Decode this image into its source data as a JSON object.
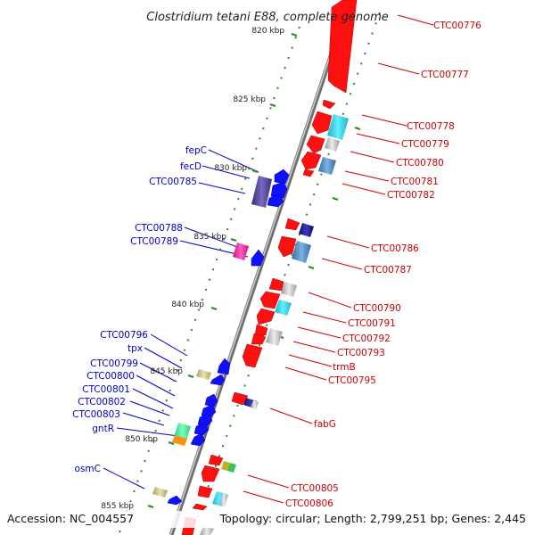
{
  "title": "Clostridium tetani E88, complete genome",
  "footer": {
    "accession": "Accession: NC_004557",
    "summary": "Topology: circular; Length: 2,799,251 bp; Genes: 2,445"
  },
  "colors": {
    "forward_gene": "#ff1010",
    "reverse_gene": "#1010ff",
    "backbone": "#8a8a8a",
    "tick": "#2a8a20",
    "label_right": "#cc0000",
    "label_left": "#0000cc"
  },
  "kbp_ticks": [
    {
      "label": "820 kbp"
    },
    {
      "label": "825 kbp"
    },
    {
      "label": "830 kbp"
    },
    {
      "label": "835 kbp"
    },
    {
      "label": "840 kbp"
    },
    {
      "label": "845 kbp"
    },
    {
      "label": "850 kbp"
    },
    {
      "label": "855 kbp"
    }
  ],
  "right_labels": [
    {
      "text": "CTC00776"
    },
    {
      "text": "CTC00777"
    },
    {
      "text": "CTC00778"
    },
    {
      "text": "CTC00779"
    },
    {
      "text": "CTC00780"
    },
    {
      "text": "CTC00781"
    },
    {
      "text": "CTC00782"
    },
    {
      "text": "CTC00786"
    },
    {
      "text": "CTC00787"
    },
    {
      "text": "CTC00790"
    },
    {
      "text": "CTC00791"
    },
    {
      "text": "CTC00792"
    },
    {
      "text": "CTC00793"
    },
    {
      "text": "trmB"
    },
    {
      "text": "CTC00795"
    },
    {
      "text": "fabG"
    },
    {
      "text": "CTC00805"
    },
    {
      "text": "CTC00806"
    }
  ],
  "left_labels": [
    {
      "text": "fepC"
    },
    {
      "text": "fecD"
    },
    {
      "text": "CTC00785"
    },
    {
      "text": "CTC00788"
    },
    {
      "text": "CTC00789"
    },
    {
      "text": "CTC00796"
    },
    {
      "text": "tpx"
    },
    {
      "text": "CTC00799"
    },
    {
      "text": "CTC00800"
    },
    {
      "text": "CTC00801"
    },
    {
      "text": "CTC00802"
    },
    {
      "text": "CTC00803"
    },
    {
      "text": "gntR"
    },
    {
      "text": "osmC"
    }
  ]
}
